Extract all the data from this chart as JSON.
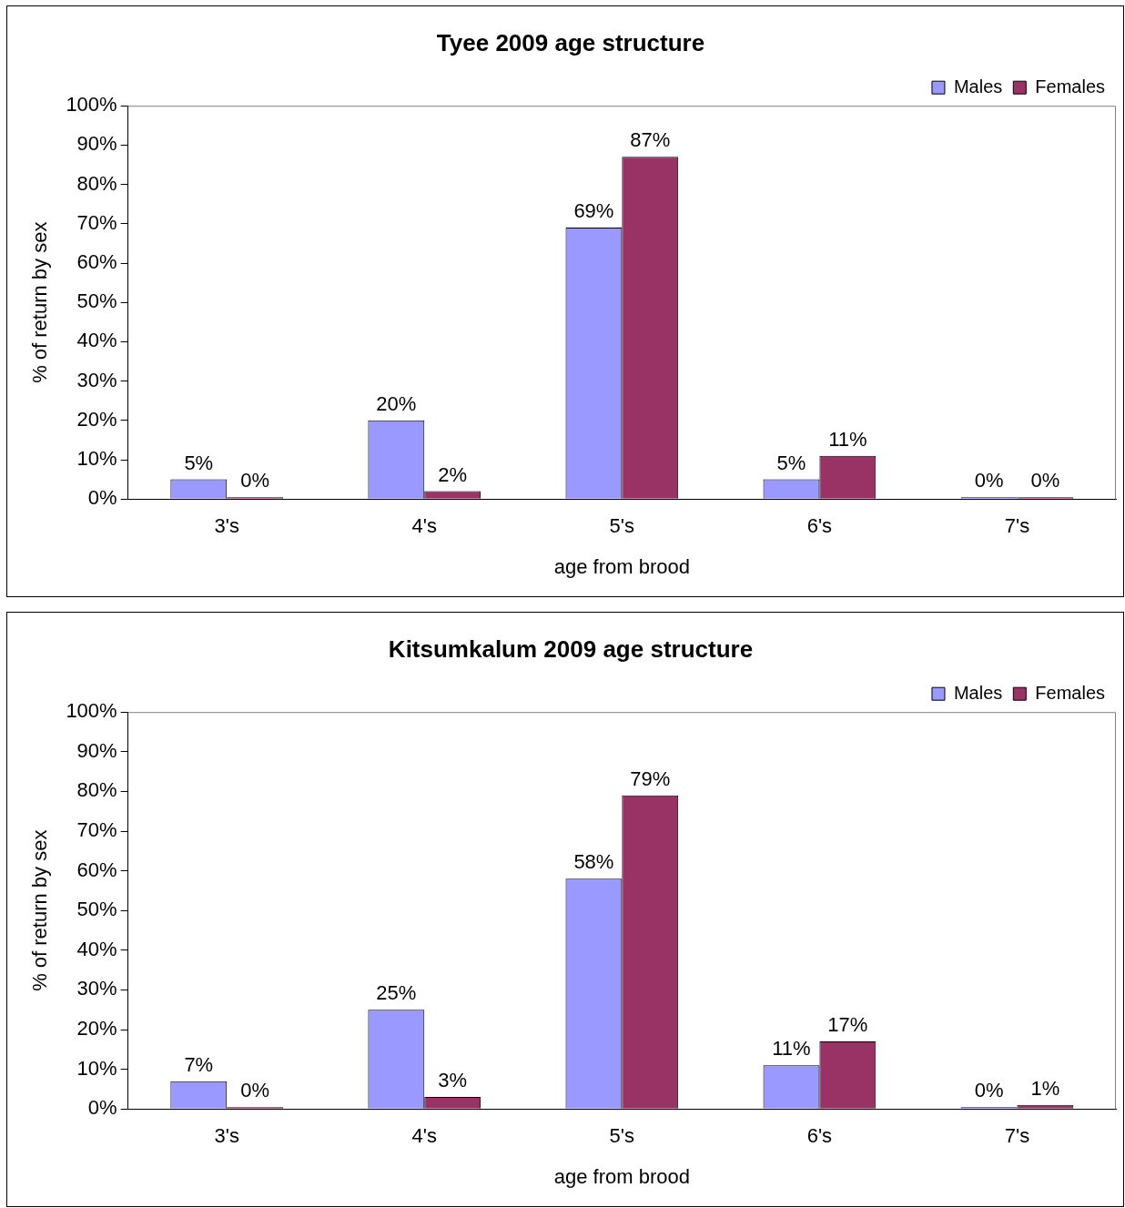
{
  "chart_data": [
    {
      "type": "bar",
      "title": "Tyee 2009 age structure",
      "xlabel": "age from brood",
      "ylabel": "% of return by sex",
      "categories": [
        "3's",
        "4's",
        "5's",
        "6's",
        "7's"
      ],
      "series": [
        {
          "name": "Males",
          "color": "#9999ff",
          "values": [
            5,
            20,
            69,
            5,
            0
          ],
          "value_labels": [
            "5%",
            "20%",
            "69%",
            "5%",
            "0%"
          ]
        },
        {
          "name": "Females",
          "color": "#993366",
          "values": [
            0,
            2,
            87,
            11,
            0
          ],
          "value_labels": [
            "0%",
            "2%",
            "87%",
            "11%",
            "0%"
          ]
        }
      ],
      "ylim": [
        0,
        100
      ],
      "yticks": [
        {
          "value": 0,
          "label": "0%"
        },
        {
          "value": 10,
          "label": "10%"
        },
        {
          "value": 20,
          "label": "20%"
        },
        {
          "value": 30,
          "label": "30%"
        },
        {
          "value": 40,
          "label": "40%"
        },
        {
          "value": 50,
          "label": "50%"
        },
        {
          "value": 60,
          "label": "60%"
        },
        {
          "value": 70,
          "label": "70%"
        },
        {
          "value": 80,
          "label": "80%"
        },
        {
          "value": 90,
          "label": "90%"
        },
        {
          "value": 100,
          "label": "100%"
        }
      ],
      "grid": false,
      "legend": "top right"
    },
    {
      "type": "bar",
      "title": "Kitsumkalum 2009 age structure",
      "xlabel": "age from brood",
      "ylabel": "% of return by sex",
      "categories": [
        "3's",
        "4's",
        "5's",
        "6's",
        "7's"
      ],
      "series": [
        {
          "name": "Males",
          "color": "#9999ff",
          "values": [
            7,
            25,
            58,
            11,
            0
          ],
          "value_labels": [
            "7%",
            "25%",
            "58%",
            "11%",
            "0%"
          ]
        },
        {
          "name": "Females",
          "color": "#993366",
          "values": [
            0,
            3,
            79,
            17,
            1
          ],
          "value_labels": [
            "0%",
            "3%",
            "79%",
            "17%",
            "1%"
          ]
        }
      ],
      "ylim": [
        0,
        100
      ],
      "yticks": [
        {
          "value": 0,
          "label": "0%"
        },
        {
          "value": 10,
          "label": "10%"
        },
        {
          "value": 20,
          "label": "20%"
        },
        {
          "value": 30,
          "label": "30%"
        },
        {
          "value": 40,
          "label": "40%"
        },
        {
          "value": 50,
          "label": "50%"
        },
        {
          "value": 60,
          "label": "60%"
        },
        {
          "value": 70,
          "label": "70%"
        },
        {
          "value": 80,
          "label": "80%"
        },
        {
          "value": 90,
          "label": "90%"
        },
        {
          "value": 100,
          "label": "100%"
        }
      ],
      "grid": false,
      "legend": "top right"
    }
  ]
}
